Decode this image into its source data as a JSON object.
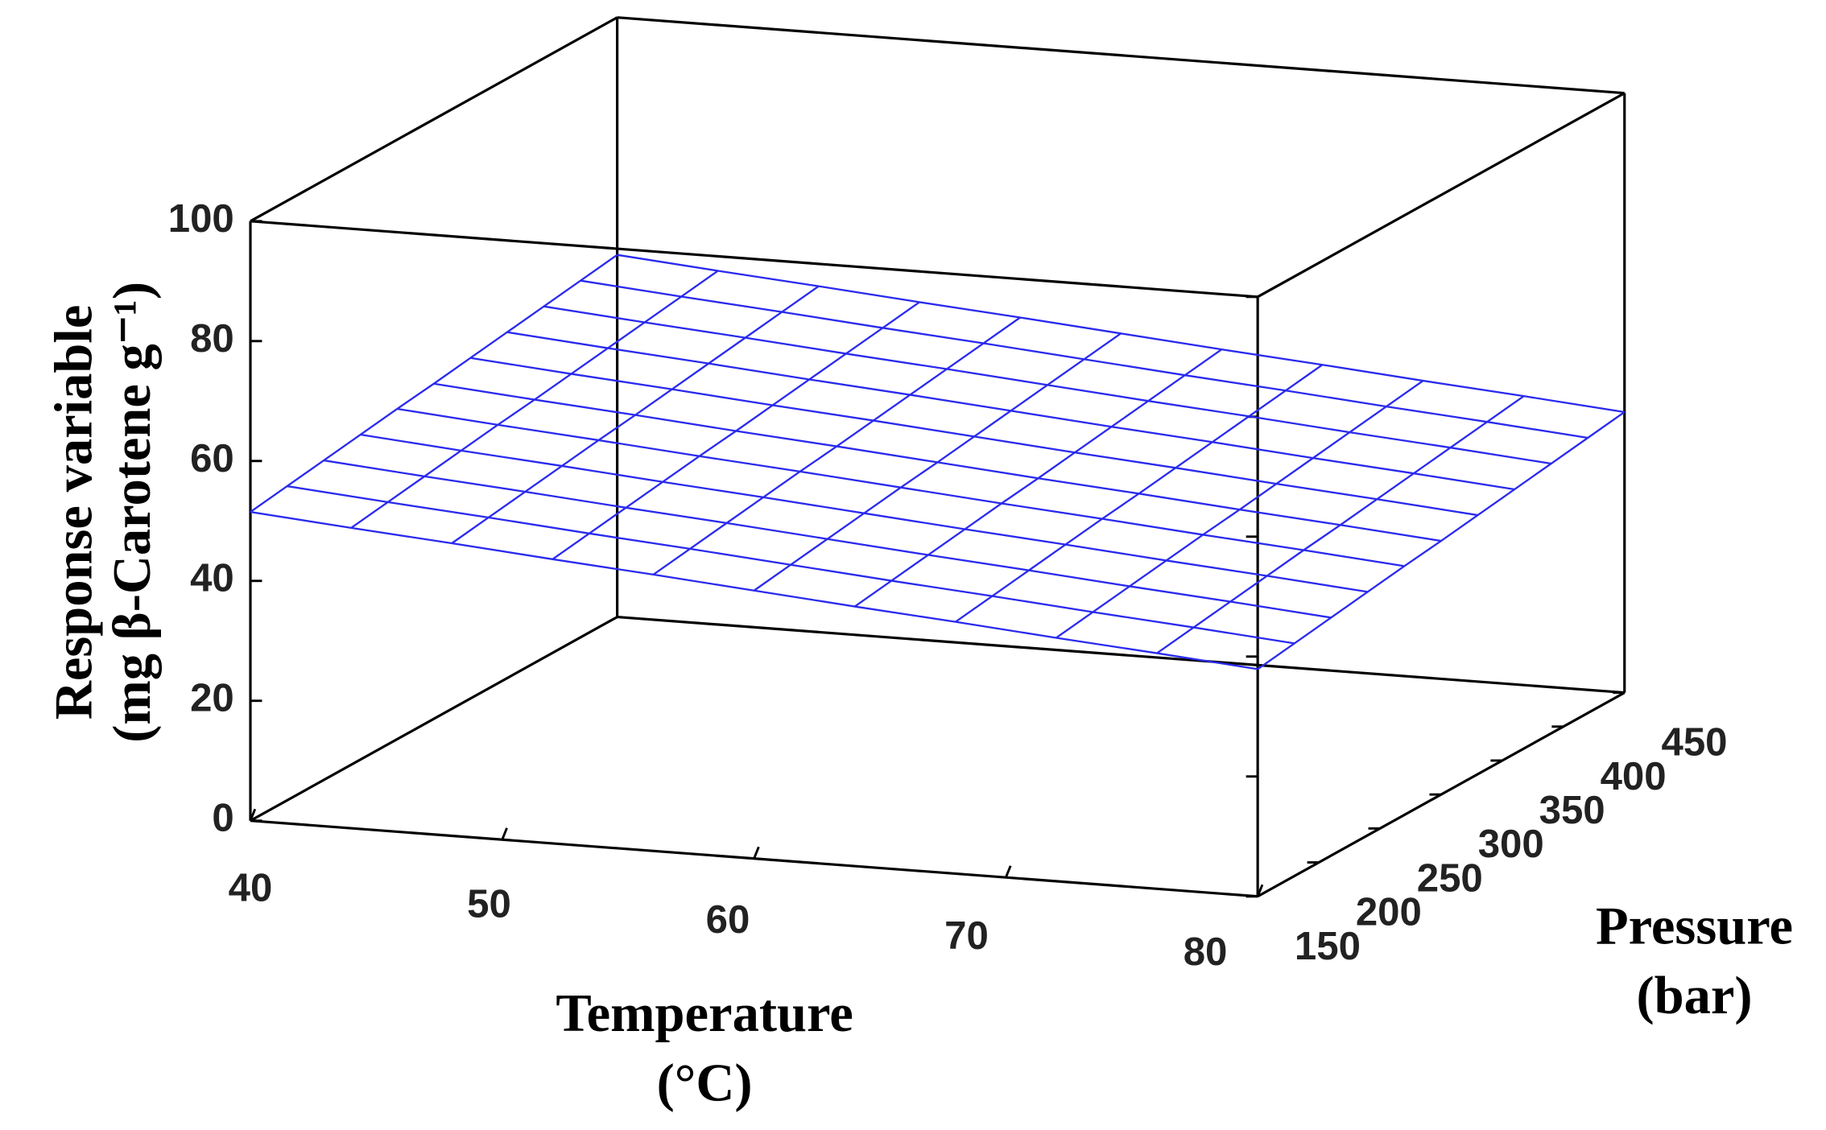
{
  "chart_data": {
    "type": "surface3d",
    "x_label": [
      "Temperature",
      "(°C)"
    ],
    "y_label": [
      "Pressure",
      "(bar)"
    ],
    "z_label": [
      "Response variable",
      "(mg β-Carotene g⁻¹)"
    ],
    "xlim": [
      40,
      80
    ],
    "xticks": [
      40,
      50,
      60,
      70,
      80
    ],
    "ylim": [
      150,
      450
    ],
    "yticks": [
      150,
      200,
      250,
      300,
      350,
      400,
      450
    ],
    "zlim": [
      0,
      100
    ],
    "zticks": [
      0,
      20,
      40,
      60,
      80,
      100
    ],
    "color": "#2a2aee",
    "x": [
      40,
      44,
      48,
      52,
      56,
      60,
      64,
      68,
      72,
      76,
      80
    ],
    "y": [
      150,
      180,
      210,
      240,
      270,
      300,
      330,
      360,
      390,
      420,
      450
    ],
    "z": [
      [
        51.5,
        50.1,
        48.8,
        47.4,
        46.1,
        44.7,
        43.3,
        42.0,
        40.6,
        39.3,
        37.9
      ],
      [
        52.4,
        51.0,
        49.7,
        48.3,
        47.0,
        45.6,
        44.2,
        42.9,
        41.5,
        40.2,
        38.8
      ],
      [
        53.3,
        51.9,
        50.6,
        49.2,
        47.9,
        46.5,
        45.1,
        43.8,
        42.4,
        41.1,
        39.7
      ],
      [
        54.2,
        52.8,
        51.5,
        50.1,
        48.8,
        47.4,
        46.0,
        44.7,
        43.3,
        42.0,
        40.6
      ],
      [
        55.1,
        53.7,
        52.4,
        51.0,
        49.7,
        48.3,
        46.9,
        45.6,
        44.2,
        42.9,
        41.5
      ],
      [
        55.9,
        54.5,
        53.2,
        51.8,
        50.5,
        49.1,
        47.7,
        46.4,
        45.0,
        43.7,
        42.3
      ],
      [
        56.8,
        55.4,
        54.1,
        52.7,
        51.4,
        50.0,
        48.6,
        47.3,
        45.9,
        44.6,
        43.2
      ],
      [
        57.7,
        56.3,
        55.0,
        53.6,
        52.3,
        50.9,
        49.5,
        48.2,
        46.8,
        45.5,
        44.1
      ],
      [
        58.6,
        57.2,
        55.9,
        54.5,
        53.2,
        51.8,
        50.4,
        49.1,
        47.7,
        46.4,
        45.0
      ],
      [
        59.5,
        58.1,
        56.8,
        55.4,
        54.1,
        52.7,
        51.3,
        50.0,
        48.6,
        47.3,
        45.9
      ],
      [
        60.4,
        59.0,
        57.7,
        56.3,
        55.0,
        53.6,
        52.2,
        50.9,
        49.5,
        48.2,
        46.8
      ]
    ]
  }
}
